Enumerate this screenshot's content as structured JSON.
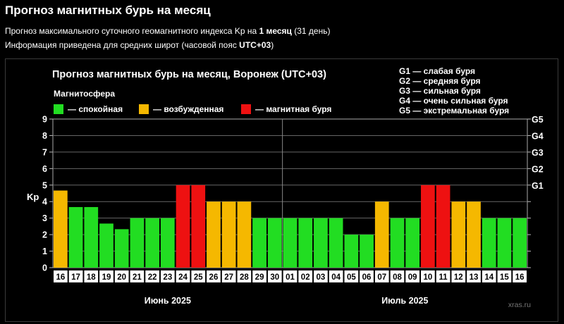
{
  "page": {
    "title": "Прогноз магнитных бурь на месяц",
    "line1_pre": "Прогноз максимального суточного геомагнитного индекса Kp на ",
    "line1_bold": "1 месяц",
    "line1_post": " (31 день)",
    "line2_pre": "Информация приведена для средних широт (часовой пояс ",
    "line2_bold": "UTC+03",
    "line2_post": ")"
  },
  "chart_data": {
    "type": "bar",
    "title": "Прогноз магнитных бурь на месяц, Воронеж (UTC+03)",
    "legend_title": "Магнитосфера",
    "legend": [
      {
        "label": "— спокойная",
        "color": "#22dd22"
      },
      {
        "label": "— возбужденная",
        "color": "#f5b800"
      },
      {
        "label": "— магнитная буря",
        "color": "#ee1111"
      }
    ],
    "g_scale": [
      "G1 — слабая буря",
      "G2 — средняя буря",
      "G3 — сильная буря",
      "G4 — очень сильная буря",
      "G5 — экстремальная буря"
    ],
    "ylabel": "Kp",
    "ylim": [
      0,
      9
    ],
    "yticks": [
      "0",
      "1",
      "2",
      "3",
      "4",
      "5",
      "6",
      "7",
      "8",
      "9"
    ],
    "right_ticks": [
      {
        "label": "G1",
        "kp": 5
      },
      {
        "label": "G2",
        "kp": 6
      },
      {
        "label": "G3",
        "kp": 7
      },
      {
        "label": "G4",
        "kp": 8
      },
      {
        "label": "G5",
        "kp": 9
      }
    ],
    "categories": [
      "16",
      "17",
      "18",
      "19",
      "20",
      "21",
      "22",
      "23",
      "24",
      "25",
      "26",
      "27",
      "28",
      "29",
      "30",
      "01",
      "02",
      "03",
      "04",
      "05",
      "06",
      "07",
      "08",
      "09",
      "10",
      "11",
      "12",
      "13",
      "14",
      "15",
      "16"
    ],
    "values": [
      4.67,
      3.67,
      3.67,
      2.67,
      2.33,
      3,
      3,
      3,
      5,
      5,
      4,
      4,
      4,
      3,
      3,
      3,
      3,
      3,
      3,
      2,
      2,
      4,
      3,
      3,
      5,
      5,
      4,
      4,
      3,
      3,
      3
    ],
    "levels": [
      "excited",
      "calm",
      "calm",
      "calm",
      "calm",
      "calm",
      "calm",
      "calm",
      "storm",
      "storm",
      "excited",
      "excited",
      "excited",
      "calm",
      "calm",
      "calm",
      "calm",
      "calm",
      "calm",
      "calm",
      "calm",
      "excited",
      "calm",
      "calm",
      "storm",
      "storm",
      "excited",
      "excited",
      "calm",
      "calm",
      "calm"
    ],
    "colors": {
      "calm": "#22dd22",
      "excited": "#f5b800",
      "storm": "#ee1111"
    },
    "month_labels": [
      "Июнь 2025",
      "Июль 2025"
    ],
    "watermark": "xras.ru"
  }
}
